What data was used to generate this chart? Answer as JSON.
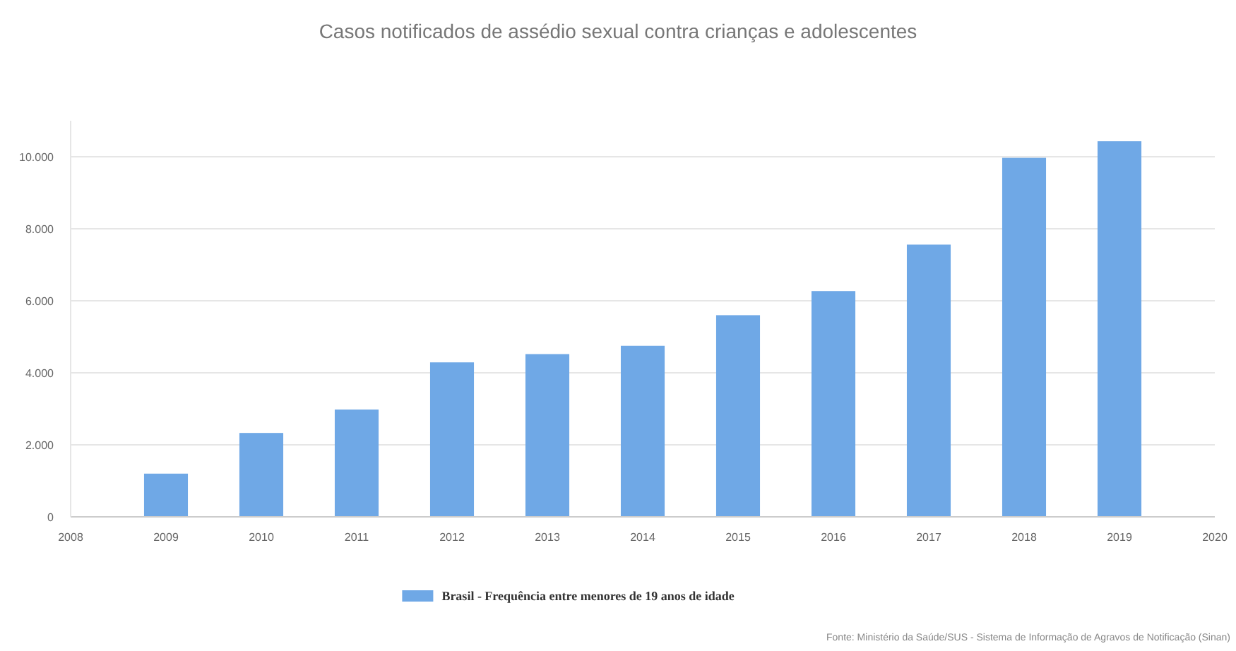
{
  "chart_data": {
    "type": "bar",
    "title": "Casos notificados de assédio sexual contra crianças e adolescentes",
    "x": [
      2009,
      2010,
      2011,
      2012,
      2013,
      2014,
      2015,
      2016,
      2017,
      2018,
      2019
    ],
    "series": [
      {
        "name": "Brasil - Frequência entre menores de 19 anos de idade",
        "color": "#6fa8e6",
        "values": [
          1200,
          2330,
          2980,
          4290,
          4520,
          4750,
          5600,
          6270,
          7560,
          9970,
          10430
        ]
      }
    ],
    "xlim": [
      2008,
      2020
    ],
    "xticks": [
      2008,
      2009,
      2010,
      2011,
      2012,
      2013,
      2014,
      2015,
      2016,
      2017,
      2018,
      2019,
      2020
    ],
    "ylim": [
      0,
      11000
    ],
    "yticks": [
      0,
      {
        "value": 2000,
        "label": "2.000"
      },
      {
        "value": 4000,
        "label": "4.000"
      },
      {
        "value": 6000,
        "label": "6.000"
      },
      {
        "value": 8000,
        "label": "8.000"
      },
      {
        "value": 10000,
        "label": "10.000"
      }
    ],
    "grid": "y",
    "legend": "bottom",
    "annotations": [
      "Fonte: Ministério da Saúde/SUS - Sistema de Informação de Agravos de Notificação (Sinan)"
    ]
  }
}
